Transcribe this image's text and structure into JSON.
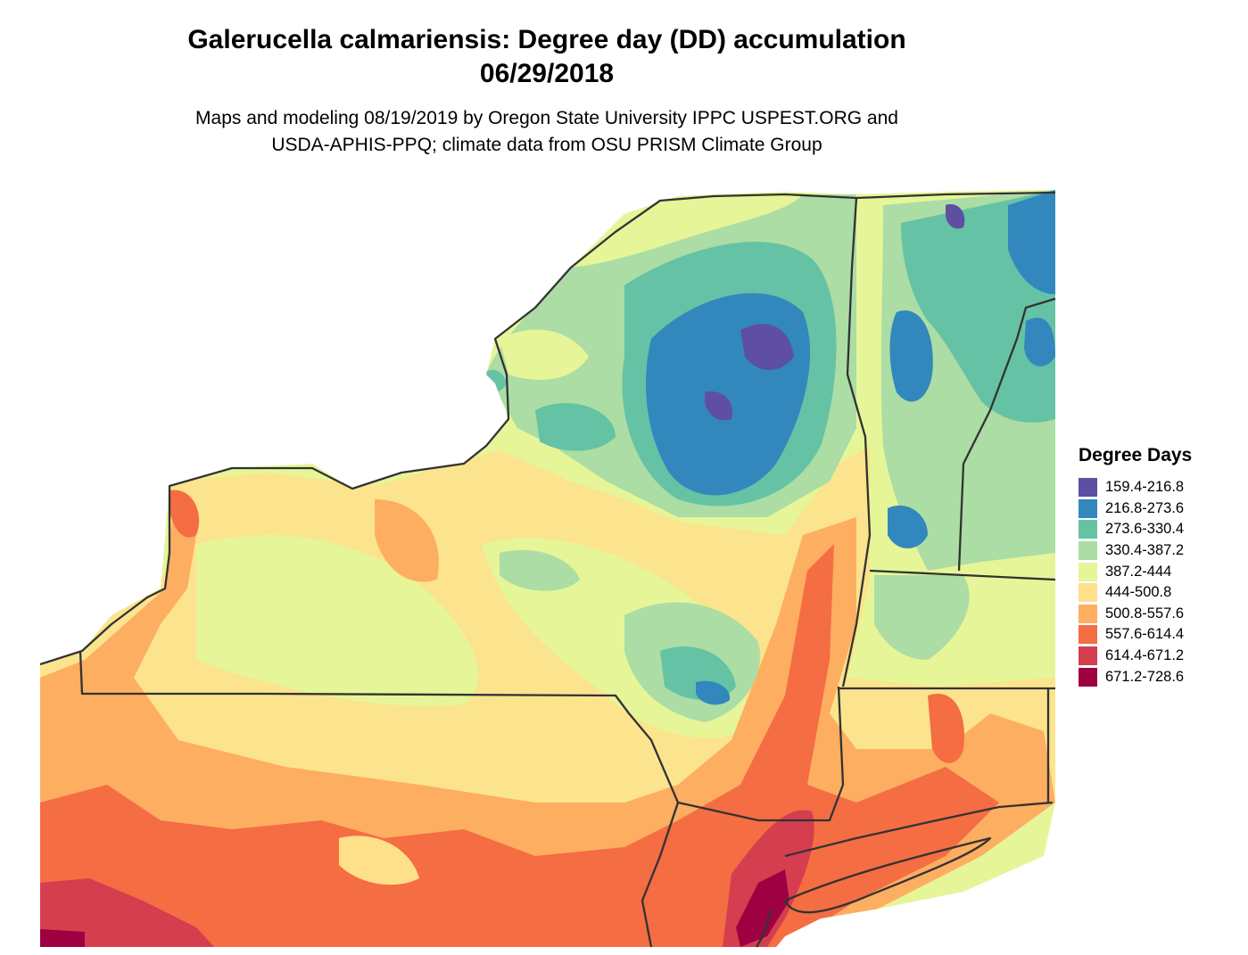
{
  "title_line1": "Galerucella calmariensis: Degree day (DD) accumulation",
  "title_line2": "06/29/2018",
  "subtitle_line1": "Maps and modeling 08/19/2019 by Oregon State University IPPC USPEST.ORG and",
  "subtitle_line2": "USDA-APHIS-PPQ; climate data from OSU PRISM Climate Group",
  "legend": {
    "title": "Degree Days",
    "items": [
      {
        "label": "159.4-216.8",
        "color": "#5E4FA2"
      },
      {
        "label": "216.8-273.6",
        "color": "#3288BD"
      },
      {
        "label": "273.6-330.4",
        "color": "#66C2A5"
      },
      {
        "label": "330.4-387.2",
        "color": "#ABDDA4"
      },
      {
        "label": "387.2-444",
        "color": "#E6F598"
      },
      {
        "label": "444-500.8",
        "color": "#FEE08B"
      },
      {
        "label": "500.8-557.6",
        "color": "#FDAE61"
      },
      {
        "label": "557.6-614.4",
        "color": "#F46D43"
      },
      {
        "label": "614.4-671.2",
        "color": "#D53E4F"
      },
      {
        "label": "671.2-728.6",
        "color": "#9E0142"
      }
    ]
  }
}
